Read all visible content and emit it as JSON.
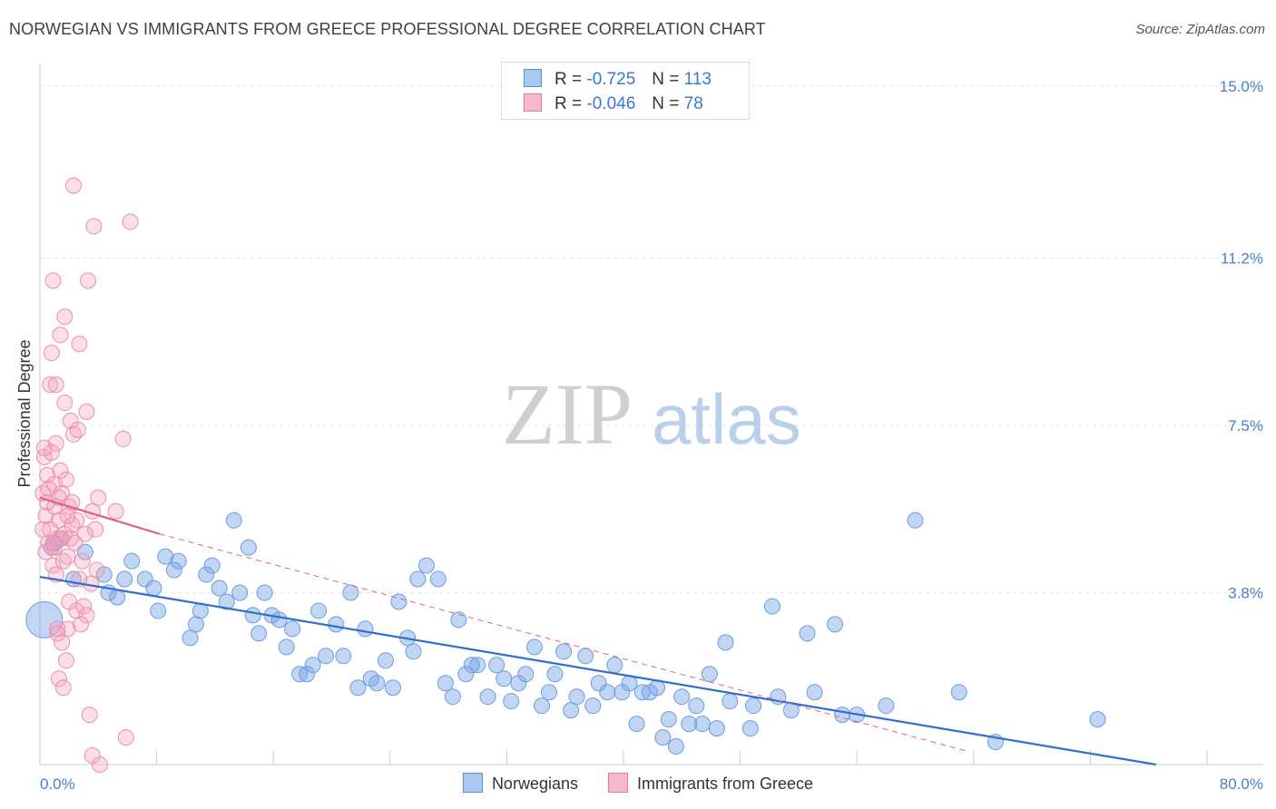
{
  "title": "NORWEGIAN VS IMMIGRANTS FROM GREECE PROFESSIONAL DEGREE CORRELATION CHART",
  "source": "Source: ZipAtlas.com",
  "watermark": {
    "zip": "ZIP",
    "atlas": "atlas"
  },
  "legend": {
    "r_label": "R =",
    "n_label": "N =",
    "rows": [
      {
        "name": "Norwegians",
        "r": "-0.725",
        "n": "113",
        "color": "#a8c8f0",
        "stroke": "#5a8fd8"
      },
      {
        "name": "Immigrants from Greece",
        "r": "-0.046",
        "n": "78",
        "color": "#f7b8cb",
        "stroke": "#e57a9c"
      }
    ]
  },
  "chart_data": {
    "type": "scatter",
    "title": "NORWEGIAN VS IMMIGRANTS FROM GREECE PROFESSIONAL DEGREE CORRELATION CHART",
    "xlabel": "",
    "ylabel": "Professional Degree",
    "xlim": [
      0,
      80
    ],
    "ylim": [
      0,
      15.5
    ],
    "x_tick_labels": [
      "0.0%",
      "80.0%"
    ],
    "y_ticks": [
      3.8,
      7.5,
      11.2,
      15.0
    ],
    "y_tick_labels": [
      "3.8%",
      "7.5%",
      "11.2%",
      "15.0%"
    ],
    "grid": true,
    "series": [
      {
        "name": "Norwegians",
        "color": "#6a9ee0",
        "trend": {
          "x": [
            0,
            76.5
          ],
          "y": [
            4.15,
            0.0
          ],
          "color": "#2f6fd0"
        },
        "points": [
          [
            0.3,
            3.2
          ],
          [
            0.8,
            4.8
          ],
          [
            1.0,
            4.9
          ],
          [
            1.4,
            5.0
          ],
          [
            2.3,
            4.1
          ],
          [
            3.1,
            4.7
          ],
          [
            4.4,
            4.2
          ],
          [
            4.7,
            3.8
          ],
          [
            5.3,
            3.7
          ],
          [
            5.8,
            4.1
          ],
          [
            6.3,
            4.5
          ],
          [
            7.2,
            4.1
          ],
          [
            7.8,
            3.9
          ],
          [
            8.1,
            3.4
          ],
          [
            8.6,
            4.6
          ],
          [
            9.2,
            4.3
          ],
          [
            9.5,
            4.5
          ],
          [
            10.3,
            2.8
          ],
          [
            10.7,
            3.1
          ],
          [
            11.0,
            3.4
          ],
          [
            11.4,
            4.2
          ],
          [
            11.8,
            4.4
          ],
          [
            12.3,
            3.9
          ],
          [
            12.8,
            3.6
          ],
          [
            13.3,
            5.4
          ],
          [
            13.7,
            3.8
          ],
          [
            14.3,
            4.8
          ],
          [
            14.6,
            3.3
          ],
          [
            15.0,
            2.9
          ],
          [
            15.4,
            3.8
          ],
          [
            15.9,
            3.3
          ],
          [
            16.4,
            3.2
          ],
          [
            16.9,
            2.6
          ],
          [
            17.3,
            3.0
          ],
          [
            17.8,
            2.0
          ],
          [
            18.3,
            2.0
          ],
          [
            18.7,
            2.2
          ],
          [
            19.1,
            3.4
          ],
          [
            19.6,
            2.4
          ],
          [
            20.3,
            3.1
          ],
          [
            20.8,
            2.4
          ],
          [
            21.3,
            3.8
          ],
          [
            21.8,
            1.7
          ],
          [
            22.3,
            3.0
          ],
          [
            22.7,
            1.9
          ],
          [
            23.1,
            1.8
          ],
          [
            23.7,
            2.3
          ],
          [
            24.2,
            1.7
          ],
          [
            24.6,
            3.6
          ],
          [
            25.2,
            2.8
          ],
          [
            25.6,
            2.5
          ],
          [
            25.9,
            4.1
          ],
          [
            26.5,
            4.4
          ],
          [
            27.3,
            4.1
          ],
          [
            27.8,
            1.8
          ],
          [
            28.3,
            1.5
          ],
          [
            28.7,
            3.2
          ],
          [
            29.2,
            2.0
          ],
          [
            29.6,
            2.2
          ],
          [
            30.0,
            2.2
          ],
          [
            30.7,
            1.5
          ],
          [
            31.3,
            2.2
          ],
          [
            31.8,
            1.9
          ],
          [
            32.3,
            1.4
          ],
          [
            32.8,
            1.8
          ],
          [
            33.3,
            2.0
          ],
          [
            33.9,
            2.6
          ],
          [
            34.4,
            1.3
          ],
          [
            34.9,
            1.6
          ],
          [
            35.3,
            2.0
          ],
          [
            35.9,
            2.5
          ],
          [
            36.4,
            1.2
          ],
          [
            36.8,
            1.5
          ],
          [
            37.4,
            2.4
          ],
          [
            37.9,
            1.3
          ],
          [
            38.3,
            1.8
          ],
          [
            38.9,
            1.6
          ],
          [
            39.4,
            2.2
          ],
          [
            39.9,
            1.6
          ],
          [
            40.4,
            1.8
          ],
          [
            40.9,
            0.9
          ],
          [
            41.3,
            1.6
          ],
          [
            41.8,
            1.6
          ],
          [
            42.3,
            1.7
          ],
          [
            42.7,
            0.6
          ],
          [
            43.1,
            1.0
          ],
          [
            43.6,
            0.4
          ],
          [
            44.0,
            1.5
          ],
          [
            44.5,
            0.9
          ],
          [
            45.0,
            1.3
          ],
          [
            45.4,
            0.9
          ],
          [
            45.9,
            2.0
          ],
          [
            46.4,
            0.8
          ],
          [
            47.0,
            2.7
          ],
          [
            47.3,
            1.4
          ],
          [
            48.7,
            0.8
          ],
          [
            48.9,
            1.3
          ],
          [
            50.2,
            3.5
          ],
          [
            50.6,
            1.5
          ],
          [
            51.5,
            1.2
          ],
          [
            52.6,
            2.9
          ],
          [
            53.1,
            1.6
          ],
          [
            54.5,
            3.1
          ],
          [
            55.0,
            1.1
          ],
          [
            56.0,
            1.1
          ],
          [
            58.0,
            1.3
          ],
          [
            60.0,
            5.4
          ],
          [
            63.0,
            1.6
          ],
          [
            65.5,
            0.5
          ],
          [
            72.5,
            1.0
          ]
        ]
      },
      {
        "name": "Immigrants from Greece",
        "color": "#f0a0b8",
        "trend": {
          "x": [
            0,
            8.2
          ],
          "y": [
            5.9,
            5.1
          ],
          "color": "#e0608a",
          "dashed_to": [
            63.5,
            0.3
          ]
        },
        "points": [
          [
            0.2,
            5.2
          ],
          [
            0.2,
            6.0
          ],
          [
            0.3,
            6.8
          ],
          [
            0.4,
            5.5
          ],
          [
            0.5,
            6.4
          ],
          [
            0.5,
            5.8
          ],
          [
            0.6,
            4.9
          ],
          [
            0.6,
            6.1
          ],
          [
            0.7,
            8.4
          ],
          [
            0.7,
            5.2
          ],
          [
            0.8,
            9.1
          ],
          [
            0.8,
            6.9
          ],
          [
            0.9,
            10.7
          ],
          [
            0.9,
            4.4
          ],
          [
            1.0,
            5.7
          ],
          [
            1.0,
            6.2
          ],
          [
            1.0,
            4.8
          ],
          [
            1.1,
            7.1
          ],
          [
            1.1,
            8.4
          ],
          [
            1.1,
            4.2
          ],
          [
            1.2,
            5.0
          ],
          [
            1.2,
            3.0
          ],
          [
            1.3,
            1.9
          ],
          [
            1.3,
            5.4
          ],
          [
            1.4,
            9.5
          ],
          [
            1.4,
            6.5
          ],
          [
            1.5,
            5.0
          ],
          [
            1.5,
            2.7
          ],
          [
            1.6,
            1.7
          ],
          [
            1.6,
            4.5
          ],
          [
            1.7,
            8.0
          ],
          [
            1.7,
            9.9
          ],
          [
            1.7,
            5.1
          ],
          [
            1.8,
            2.3
          ],
          [
            1.8,
            6.3
          ],
          [
            1.9,
            3.0
          ],
          [
            1.9,
            4.6
          ],
          [
            2.0,
            3.6
          ],
          [
            2.0,
            5.7
          ],
          [
            2.1,
            5.0
          ],
          [
            2.1,
            7.6
          ],
          [
            2.2,
            5.3
          ],
          [
            2.3,
            12.8
          ],
          [
            2.3,
            7.3
          ],
          [
            2.4,
            4.9
          ],
          [
            2.5,
            3.4
          ],
          [
            2.5,
            5.4
          ],
          [
            2.6,
            7.4
          ],
          [
            2.7,
            9.3
          ],
          [
            2.8,
            3.1
          ],
          [
            2.9,
            4.5
          ],
          [
            3.0,
            3.5
          ],
          [
            3.1,
            5.1
          ],
          [
            3.2,
            7.8
          ],
          [
            3.3,
            10.7
          ],
          [
            3.4,
            1.1
          ],
          [
            3.5,
            4.0
          ],
          [
            3.6,
            5.6
          ],
          [
            3.7,
            11.9
          ],
          [
            3.8,
            5.2
          ],
          [
            3.9,
            4.3
          ],
          [
            4.0,
            5.9
          ],
          [
            4.1,
            0.0
          ],
          [
            5.2,
            5.6
          ],
          [
            5.7,
            7.2
          ],
          [
            6.2,
            12.0
          ],
          [
            1.3,
            5.9
          ],
          [
            2.7,
            4.1
          ],
          [
            0.4,
            4.7
          ],
          [
            3.2,
            3.3
          ],
          [
            1.9,
            5.5
          ],
          [
            0.9,
            4.9
          ],
          [
            2.2,
            5.8
          ],
          [
            1.5,
            6.0
          ],
          [
            0.3,
            7.0
          ],
          [
            5.9,
            0.6
          ],
          [
            3.6,
            0.2
          ],
          [
            1.2,
            2.9
          ]
        ]
      }
    ]
  },
  "bottom_legend": [
    "Norwegians",
    "Immigrants from Greece"
  ]
}
